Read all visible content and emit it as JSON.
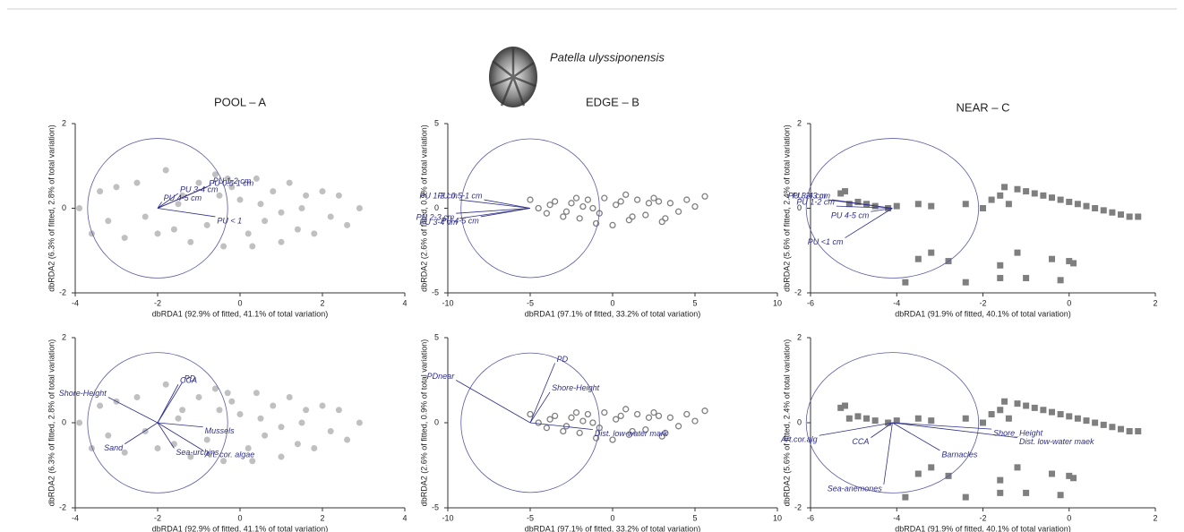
{
  "figure_title": "Patella ulyssiponensis",
  "chart_data": [
    {
      "type": "scatter",
      "title": "POOL – A",
      "xlabel": "dbRDA1 (92.9% of fitted, 41.1% of total variation)",
      "ylabel": "dbRDA2 (6.3% of fitted, 2.8% of total variation)",
      "xlim": [
        -4,
        4
      ],
      "ylim": [
        -2,
        2
      ],
      "xticks": [
        -4,
        -2,
        0,
        2,
        4
      ],
      "yticks": [
        -2,
        0,
        2
      ],
      "marker": "filled-circle",
      "color": "#c0c0c0",
      "vector_color": "#2e2e8a",
      "x": [
        -3.9,
        -3.6,
        -3.4,
        -3.2,
        -3.0,
        -2.8,
        -2.5,
        -2.3,
        -2.0,
        -1.8,
        -1.6,
        -1.4,
        -1.2,
        -1.0,
        -0.8,
        -0.6,
        -0.4,
        -0.2,
        0,
        0.2,
        0.4,
        0.6,
        0.8,
        1.0,
        1.2,
        1.4,
        1.6,
        1.8,
        2.0,
        2.2,
        2.4,
        2.6,
        2.9,
        -1.5,
        -0.5,
        0.5,
        1.0,
        1.5,
        0.3,
        -0.3
      ],
      "y": [
        0,
        -0.6,
        0.4,
        -0.3,
        0.5,
        -0.7,
        0.6,
        -0.2,
        -0.6,
        0.9,
        -0.5,
        0.3,
        -0.8,
        0.6,
        -0.4,
        0.8,
        -0.9,
        0.5,
        0.2,
        -0.6,
        0.7,
        -0.3,
        0.4,
        -0.8,
        0.6,
        -0.5,
        0.3,
        -0.6,
        0.4,
        -0.2,
        0.3,
        -0.4,
        0,
        0.1,
        0.3,
        0.1,
        -0.1,
        0.0,
        -0.9,
        0.7
      ],
      "circle": {
        "x": -2,
        "y": 0,
        "rx": 1.7,
        "ry": 1.65
      },
      "vectors": [
        {
          "label": "PU 0.5-1 cm",
          "x": -0.8,
          "y": 0.5
        },
        {
          "label": "PU 1-2 cm",
          "x": -0.7,
          "y": 0.55
        },
        {
          "label": "PU 3-4 cm",
          "x": -1.5,
          "y": 0.35
        },
        {
          "label": "PU 4-5 cm",
          "x": -1.9,
          "y": 0.15
        },
        {
          "label": "PU < 1",
          "x": -0.6,
          "y": -0.2
        }
      ]
    },
    {
      "type": "scatter",
      "title": "EDGE – B",
      "xlabel": "dbRDA1 (97.1% of fitted, 33.2% of total variation)",
      "ylabel": "dbRDA2 (2.6% of fitted, 0.9% of total variation)",
      "xlim": [
        -10,
        10
      ],
      "ylim": [
        -5,
        5
      ],
      "xticks": [
        -10,
        -5,
        0,
        5,
        10
      ],
      "yticks": [
        -5,
        0,
        5
      ],
      "marker": "open-circle",
      "color": "#808080",
      "vector_color": "#2e2e8a",
      "x": [
        -5,
        -4.5,
        -4,
        -3.5,
        -3,
        -2.5,
        -2,
        -1.5,
        -1,
        -0.5,
        0,
        0.5,
        1,
        1.5,
        2,
        2.5,
        3,
        3.5,
        4,
        4.5,
        5,
        5.6,
        -3.8,
        -2.8,
        -1.8,
        -0.8,
        0.2,
        1.2,
        2.2,
        3.2,
        -1.2,
        0.8,
        2.8,
        -2.2
      ],
      "y": [
        0.5,
        0,
        -0.3,
        0.4,
        -0.5,
        0.3,
        -0.6,
        0.5,
        -0.9,
        0.6,
        -1.0,
        0.4,
        -0.7,
        0.5,
        -0.4,
        0.6,
        -0.8,
        0.3,
        -0.2,
        0.5,
        0.1,
        0.7,
        0.2,
        -0.2,
        0.1,
        -0.3,
        0.2,
        -0.5,
        0.3,
        -0.6,
        0.0,
        0.8,
        0.4,
        0.6
      ],
      "circle": {
        "x": -5,
        "y": 0,
        "rx": 4.2,
        "ry": 4.1
      },
      "vectors": [
        {
          "label": "PU 1-2 cm",
          "x": -9.3,
          "y": 0.5
        },
        {
          "label": "PU 0.5-1 cm",
          "x": -7.8,
          "y": 0.5
        },
        {
          "label": "PU 2-3 cm",
          "x": -9.5,
          "y": -0.3
        },
        {
          "label": "PU 3-4 cm",
          "x": -9.3,
          "y": -0.6
        },
        {
          "label": "PU 4-5 cm",
          "x": -8.0,
          "y": -0.5
        }
      ]
    },
    {
      "type": "scatter",
      "title": "NEAR – C",
      "xlabel": "dbRDA1 (91.9% of fitted, 40.1% of total variation)",
      "ylabel": "dbRDA2 (5.6% of fitted, 2.4% of total variation)",
      "xlim": [
        -6,
        2
      ],
      "ylim": [
        -2,
        2
      ],
      "xticks": [
        -6,
        -4,
        -2,
        0,
        2
      ],
      "yticks": [
        -2,
        0,
        2
      ],
      "marker": "square",
      "color": "#7f7f7f",
      "vector_color": "#2e2e8a",
      "x": [
        -5.3,
        -5.1,
        -5.2,
        -4.9,
        -4.7,
        -4.5,
        -4.2,
        -4.0,
        -3.5,
        -3.2,
        -2.4,
        -2.0,
        -1.8,
        -1.6,
        -1.5,
        -1.4,
        -1.2,
        -1.0,
        -0.8,
        -0.6,
        -0.4,
        -0.2,
        0,
        0.2,
        0.4,
        0.6,
        0.8,
        1.0,
        1.2,
        1.4,
        1.6,
        -3.8,
        -3.5,
        -3.2,
        -2.8,
        -2.4,
        -1.6,
        -1.6,
        -1.2,
        -1.0,
        -0.4,
        -0.2,
        0,
        0.1
      ],
      "y": [
        0.35,
        0.1,
        0.4,
        0.15,
        0.1,
        0.05,
        0.0,
        0.05,
        0.1,
        0.05,
        0.1,
        0.0,
        0.2,
        0.3,
        0.5,
        0.1,
        0.45,
        0.4,
        0.35,
        0.3,
        0.25,
        0.2,
        0.15,
        0.1,
        0.05,
        0.0,
        -0.05,
        -0.1,
        -0.15,
        -0.2,
        -0.2,
        -1.75,
        -1.2,
        -1.05,
        -1.25,
        -1.75,
        -1.35,
        -1.65,
        -1.05,
        -1.65,
        -1.2,
        -1.7,
        -1.25,
        -1.3
      ],
      "circle": {
        "x": -4.1,
        "y": 0,
        "rx": 2.0,
        "ry": 1.65
      },
      "vectors": [
        {
          "label": "PU 3-4 cm",
          "x": -5.6,
          "y": 0.2
        },
        {
          "label": "PU 2-3 cm",
          "x": -5.5,
          "y": 0.2
        },
        {
          "label": "PU 1-2 cm",
          "x": -5.4,
          "y": 0.05
        },
        {
          "label": "PU 4-5 cm",
          "x": -4.6,
          "y": -0.08
        },
        {
          "label": "PU <1 cm",
          "x": -5.2,
          "y": -0.7
        }
      ]
    },
    {
      "type": "scatter",
      "xlabel": "dbRDA1 (92.9% of fitted, 41.1% of total variation)",
      "ylabel": "dbRDA2 (6.3% of fitted, 2.8% of total variation)",
      "xlim": [
        -4,
        4
      ],
      "ylim": [
        -2,
        2
      ],
      "xticks": [
        -4,
        -2,
        0,
        2,
        4
      ],
      "yticks": [
        -2,
        0,
        2
      ],
      "marker": "filled-circle",
      "color": "#c0c0c0",
      "vector_color": "#2e2e8a",
      "x": [
        -3.9,
        -3.6,
        -3.4,
        -3.2,
        -3.0,
        -2.8,
        -2.5,
        -2.3,
        -2.0,
        -1.8,
        -1.6,
        -1.4,
        -1.2,
        -1.0,
        -0.8,
        -0.6,
        -0.4,
        -0.2,
        0,
        0.2,
        0.4,
        0.6,
        0.8,
        1.0,
        1.2,
        1.4,
        1.6,
        1.8,
        2.0,
        2.2,
        2.4,
        2.6,
        2.9,
        -1.5,
        -0.5,
        0.5,
        1.0,
        1.5,
        0.3,
        -0.3
      ],
      "y": [
        0,
        -0.6,
        0.4,
        -0.3,
        0.5,
        -0.7,
        0.6,
        -0.2,
        -0.6,
        0.9,
        -0.5,
        0.3,
        -0.8,
        0.6,
        -0.4,
        0.8,
        -0.9,
        0.5,
        0.2,
        -0.6,
        0.7,
        -0.3,
        0.4,
        -0.8,
        0.6,
        -0.5,
        0.3,
        -0.6,
        0.4,
        -0.2,
        0.3,
        -0.4,
        0,
        0.1,
        0.3,
        0.1,
        -0.1,
        0.0,
        -0.9,
        0.7
      ],
      "circle": {
        "x": -2,
        "y": 0,
        "rx": 1.7,
        "ry": 1.65
      },
      "vectors": [
        {
          "label": "CCA",
          "x": -1.5,
          "y": 0.9
        },
        {
          "label": "PD",
          "x": -1.4,
          "y": 0.95
        },
        {
          "label": "Shore-Height",
          "x": -3.2,
          "y": 0.6
        },
        {
          "label": "Mussels",
          "x": -0.9,
          "y": -0.1
        },
        {
          "label": "Sand",
          "x": -2.8,
          "y": -0.5
        },
        {
          "label": "Art. cor. algae",
          "x": -0.9,
          "y": -0.65
        },
        {
          "label": "Sea-urchins",
          "x": -1.6,
          "y": -0.6
        }
      ]
    },
    {
      "type": "scatter",
      "xlabel": "dbRDA1 (97.1% of fitted, 33.2% of total variation)",
      "ylabel": "dbRDA2 (2.6% of fitted, 0.9% of total variation)",
      "xlim": [
        -10,
        10
      ],
      "ylim": [
        -5,
        5
      ],
      "xticks": [
        -10,
        -5,
        0,
        5,
        10
      ],
      "yticks": [
        -5,
        0,
        5
      ],
      "marker": "open-circle",
      "color": "#808080",
      "vector_color": "#2e2e8a",
      "x": [
        -5,
        -4.5,
        -4,
        -3.5,
        -3,
        -2.5,
        -2,
        -1.5,
        -1,
        -0.5,
        0,
        0.5,
        1,
        1.5,
        2,
        2.5,
        3,
        3.5,
        4,
        4.5,
        5,
        5.6,
        -3.8,
        -2.8,
        -1.8,
        -0.8,
        0.2,
        1.2,
        2.2,
        3.2,
        -1.2,
        0.8,
        2.8,
        -2.2
      ],
      "y": [
        0.5,
        0,
        -0.3,
        0.4,
        -0.5,
        0.3,
        -0.6,
        0.5,
        -0.9,
        0.6,
        -1.0,
        0.4,
        -0.7,
        0.5,
        -0.4,
        0.6,
        -0.8,
        0.3,
        -0.2,
        0.5,
        0.1,
        0.7,
        0.2,
        -0.2,
        0.1,
        -0.3,
        0.2,
        -0.5,
        0.3,
        -0.6,
        0.0,
        0.8,
        0.4,
        0.6
      ],
      "circle": {
        "x": -5,
        "y": 0,
        "rx": 4.2,
        "ry": 4.1
      },
      "vectors": [
        {
          "label": "PDnear",
          "x": -9.5,
          "y": 2.5
        },
        {
          "label": "PD",
          "x": -3.5,
          "y": 3.5
        },
        {
          "label": "Shore-Height",
          "x": -3.8,
          "y": 1.8
        },
        {
          "label": "Dist. low-water mark",
          "x": -1.2,
          "y": -0.4
        }
      ]
    },
    {
      "type": "scatter",
      "xlabel": "dbRDA1 (91.9% of fitted, 40.1% of total variation)",
      "ylabel": "dbRDA2 (5.6% of fitted, 2.4% of total variation)",
      "xlim": [
        -6,
        2
      ],
      "ylim": [
        -2,
        2
      ],
      "xticks": [
        -6,
        -4,
        -2,
        0,
        2
      ],
      "yticks": [
        -2,
        0,
        2
      ],
      "marker": "square",
      "color": "#7f7f7f",
      "vector_color": "#2e2e8a",
      "x": [
        -5.3,
        -5.1,
        -5.2,
        -4.9,
        -4.7,
        -4.5,
        -4.2,
        -4.0,
        -3.5,
        -3.2,
        -2.4,
        -2.0,
        -1.8,
        -1.6,
        -1.5,
        -1.4,
        -1.2,
        -1.0,
        -0.8,
        -0.6,
        -0.4,
        -0.2,
        0,
        0.2,
        0.4,
        0.6,
        0.8,
        1.0,
        1.2,
        1.4,
        1.6,
        -3.8,
        -3.5,
        -3.2,
        -2.8,
        -2.4,
        -1.6,
        -1.6,
        -1.2,
        -1.0,
        -0.4,
        -0.2,
        0,
        0.1
      ],
      "y": [
        0.35,
        0.1,
        0.4,
        0.15,
        0.1,
        0.05,
        0.0,
        0.05,
        0.1,
        0.05,
        0.1,
        0.0,
        0.2,
        0.3,
        0.5,
        0.1,
        0.45,
        0.4,
        0.35,
        0.3,
        0.25,
        0.2,
        0.15,
        0.1,
        0.05,
        0.0,
        -0.05,
        -0.1,
        -0.15,
        -0.2,
        -0.2,
        -1.75,
        -1.2,
        -1.05,
        -1.25,
        -1.75,
        -1.35,
        -1.65,
        -1.05,
        -1.65,
        -1.2,
        -1.7,
        -1.25,
        -1.3
      ],
      "circle": {
        "x": -4.1,
        "y": 0,
        "rx": 2.0,
        "ry": 1.65
      },
      "vectors": [
        {
          "label": "Art.cor.alg",
          "x": -5.8,
          "y": -0.3
        },
        {
          "label": "CCA",
          "x": -4.6,
          "y": -0.35
        },
        {
          "label": "Shore_Height",
          "x": -1.8,
          "y": -0.15
        },
        {
          "label": "Dist. low-water maek",
          "x": -1.2,
          "y": -0.35
        },
        {
          "label": "Barnacles",
          "x": -3.0,
          "y": -0.65
        },
        {
          "label": "Sea-anemones",
          "x": -4.3,
          "y": -1.45
        }
      ]
    }
  ]
}
